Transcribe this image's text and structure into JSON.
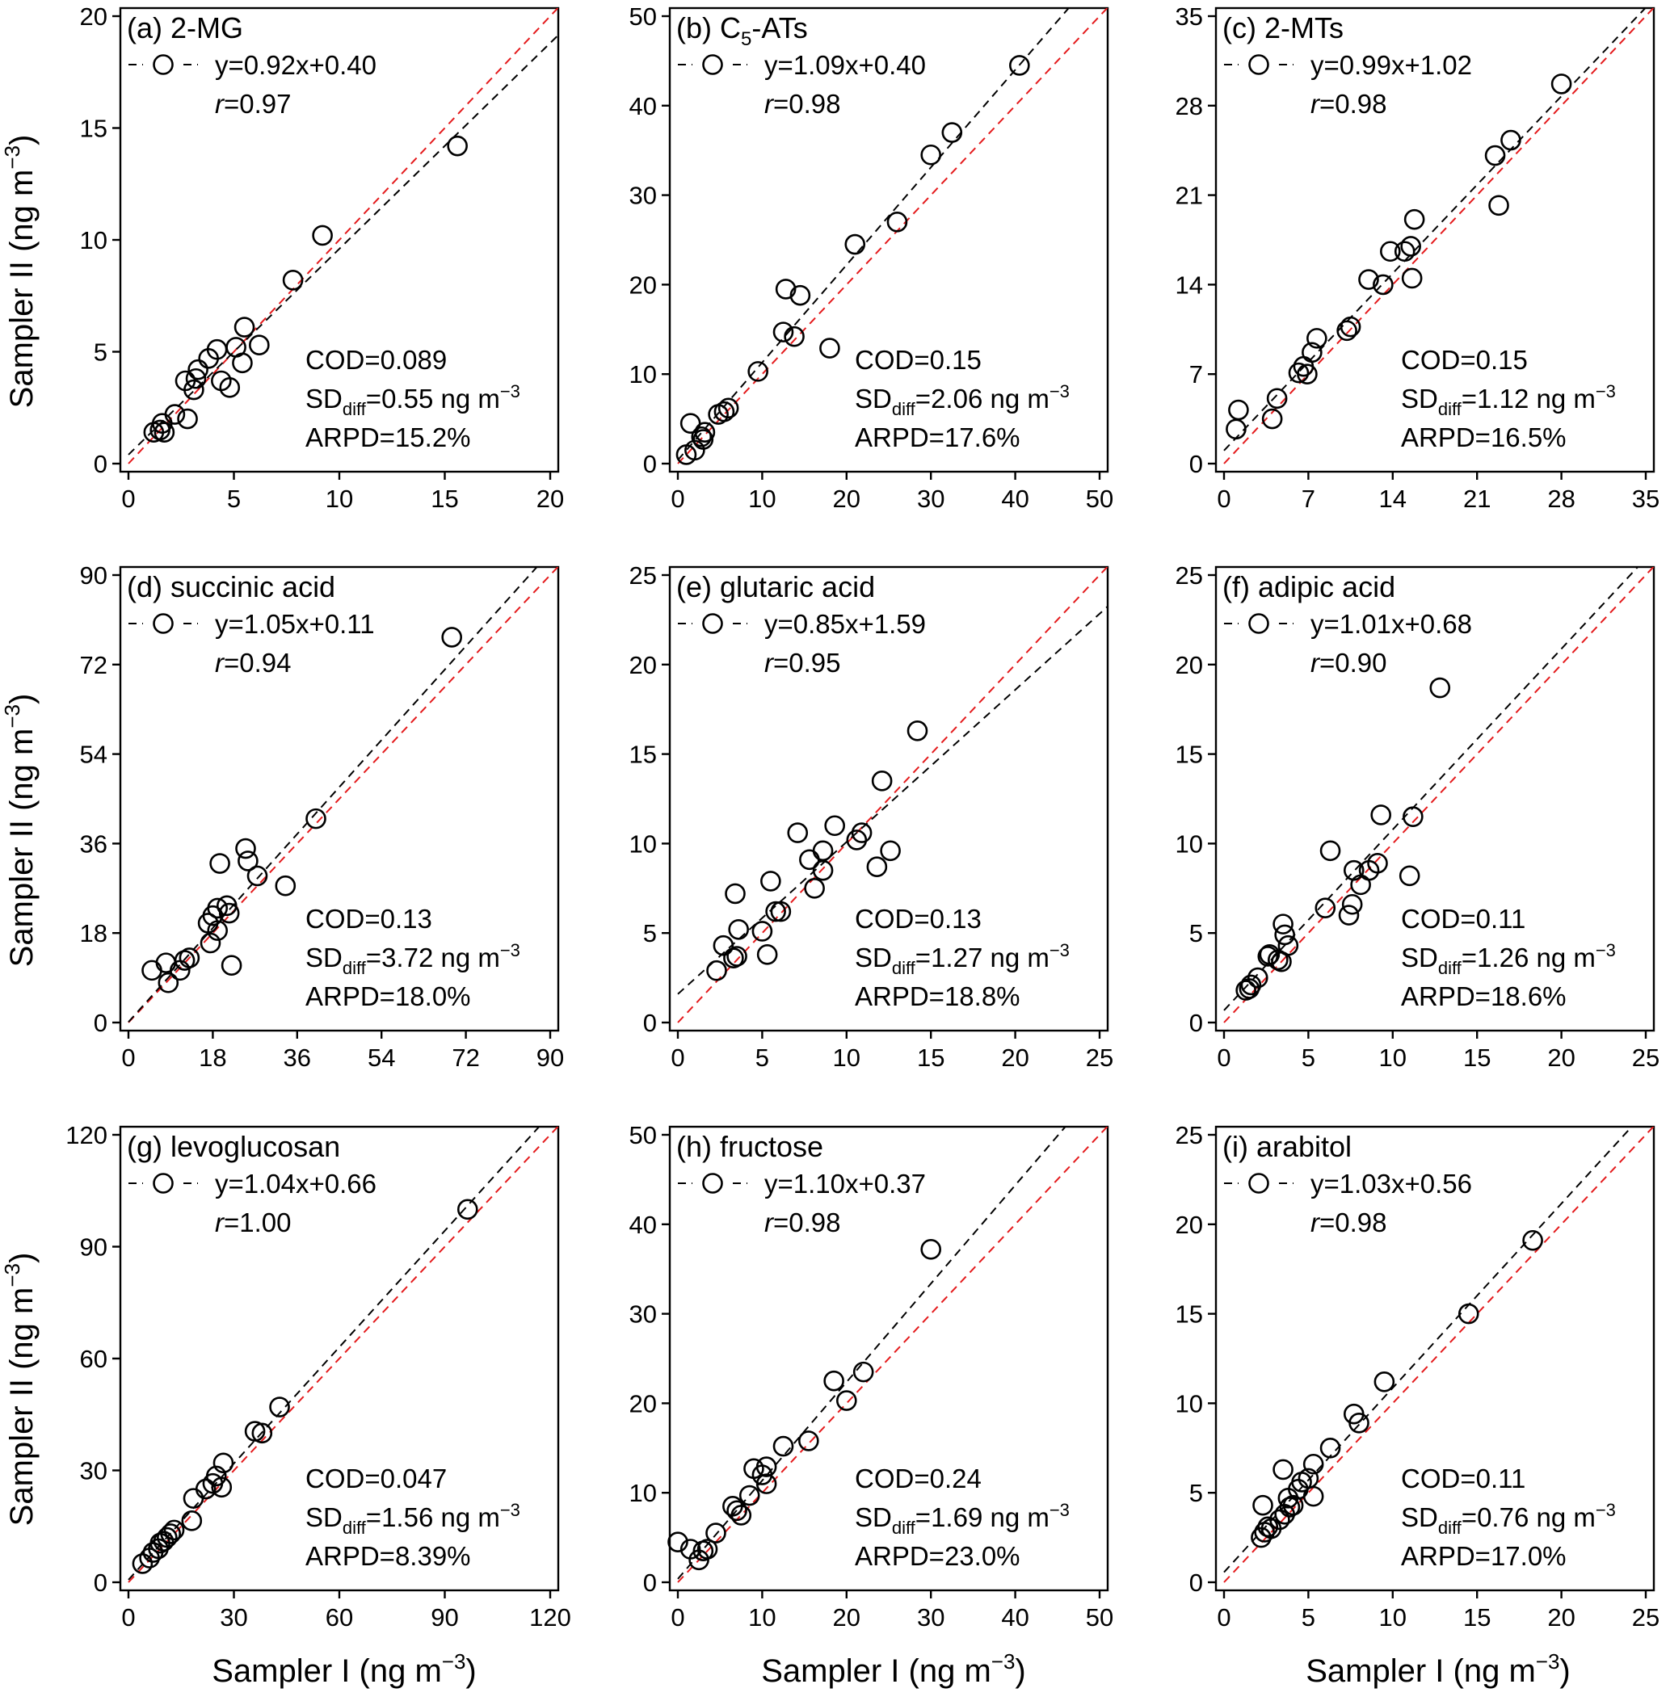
{
  "figure": {
    "ylabel_main": "Sampler II (ng m",
    "xlabel_main": "Sampler I (ng m",
    "unit_sup": "−3",
    "unit_close": ")"
  },
  "colors": {
    "fit_line": "#000000",
    "one_to_one_line": "#e41a1c",
    "markers": "#000000"
  },
  "chart_data": [
    {
      "type": "scatter",
      "title": "(a) 2-MG",
      "equation": "y=0.92x+0.40",
      "r_label": "r",
      "r_value": "=0.97",
      "cod": "COD=0.089",
      "sd_prefix": "SD",
      "sd_sub": "diff",
      "sd_value": "=0.55 ng m",
      "sd_sup": "−3",
      "arpd": "ARPD=15.2%",
      "slope": 0.92,
      "intercept": 0.4,
      "xlim": [
        0,
        20
      ],
      "ylim": [
        0,
        20
      ],
      "xticks": [
        0,
        5,
        10,
        15,
        20
      ],
      "yticks": [
        0,
        5,
        10,
        15,
        20
      ],
      "points": [
        [
          1.2,
          1.4
        ],
        [
          1.5,
          1.5
        ],
        [
          1.6,
          1.8
        ],
        [
          1.7,
          1.4
        ],
        [
          2.2,
          2.2
        ],
        [
          2.8,
          2.0
        ],
        [
          2.7,
          3.7
        ],
        [
          3.1,
          3.3
        ],
        [
          3.2,
          3.8
        ],
        [
          3.3,
          4.2
        ],
        [
          3.8,
          4.7
        ],
        [
          4.2,
          5.1
        ],
        [
          4.4,
          3.7
        ],
        [
          4.8,
          3.4
        ],
        [
          5.1,
          5.2
        ],
        [
          5.4,
          4.5
        ],
        [
          5.5,
          6.1
        ],
        [
          6.2,
          5.3
        ],
        [
          7.8,
          8.2
        ],
        [
          9.2,
          10.2
        ],
        [
          15.6,
          14.2
        ]
      ]
    },
    {
      "type": "scatter",
      "title": "(b) C",
      "title_sub": "5",
      "title_rest": "-ATs",
      "equation": "y=1.09x+0.40",
      "r_label": "r",
      "r_value": "=0.98",
      "cod": "COD=0.15",
      "sd_prefix": "SD",
      "sd_sub": "diff",
      "sd_value": "=2.06 ng m",
      "sd_sup": "−3",
      "arpd": "ARPD=17.6%",
      "slope": 1.09,
      "intercept": 0.4,
      "xlim": [
        0,
        50
      ],
      "ylim": [
        0,
        50
      ],
      "xticks": [
        0,
        10,
        20,
        30,
        40,
        50
      ],
      "yticks": [
        0,
        10,
        20,
        30,
        40,
        50
      ],
      "points": [
        [
          1.0,
          1.0
        ],
        [
          1.5,
          4.5
        ],
        [
          2.0,
          1.5
        ],
        [
          2.8,
          3.0
        ],
        [
          3.2,
          3.5
        ],
        [
          3.0,
          2.7
        ],
        [
          4.8,
          5.5
        ],
        [
          5.5,
          5.8
        ],
        [
          6.0,
          6.2
        ],
        [
          9.5,
          10.3
        ],
        [
          12.5,
          14.7
        ],
        [
          12.8,
          19.5
        ],
        [
          13.8,
          14.2
        ],
        [
          14.5,
          18.8
        ],
        [
          18.0,
          12.9
        ],
        [
          21.0,
          24.5
        ],
        [
          26.0,
          27.0
        ],
        [
          30.0,
          34.5
        ],
        [
          32.5,
          37.0
        ],
        [
          40.5,
          44.5
        ]
      ]
    },
    {
      "type": "scatter",
      "title": "(c) 2-MTs",
      "equation": "y=0.99x+1.02",
      "r_label": "r",
      "r_value": "=0.98",
      "cod": "COD=0.15",
      "sd_prefix": "SD",
      "sd_sub": "diff",
      "sd_value": "=1.12 ng m",
      "sd_sup": "−3",
      "arpd": "ARPD=16.5%",
      "slope": 0.99,
      "intercept": 1.02,
      "xlim": [
        0,
        35
      ],
      "ylim": [
        0,
        35
      ],
      "xticks": [
        0,
        7,
        14,
        21,
        28,
        35
      ],
      "yticks": [
        0,
        7,
        14,
        21,
        28,
        35
      ],
      "points": [
        [
          1.0,
          2.7
        ],
        [
          1.2,
          4.2
        ],
        [
          4.0,
          3.5
        ],
        [
          4.4,
          5.1
        ],
        [
          6.2,
          7.1
        ],
        [
          6.6,
          7.6
        ],
        [
          6.9,
          7.0
        ],
        [
          7.3,
          8.7
        ],
        [
          7.7,
          9.8
        ],
        [
          10.2,
          10.4
        ],
        [
          10.5,
          10.7
        ],
        [
          12.0,
          14.4
        ],
        [
          13.2,
          14.0
        ],
        [
          13.8,
          16.6
        ],
        [
          15.0,
          16.6
        ],
        [
          15.5,
          17.0
        ],
        [
          15.6,
          14.5
        ],
        [
          15.8,
          19.1
        ],
        [
          22.5,
          24.1
        ],
        [
          22.8,
          20.2
        ],
        [
          23.8,
          25.3
        ],
        [
          28.0,
          29.7
        ]
      ]
    },
    {
      "type": "scatter",
      "title": "(d) succinic acid",
      "equation": "y=1.05x+0.11",
      "r_label": "r",
      "r_value": "=0.94",
      "cod": "COD=0.13",
      "sd_prefix": "SD",
      "sd_sub": "diff",
      "sd_value": "=3.72 ng m",
      "sd_sup": "−3",
      "arpd": "ARPD=18.0%",
      "slope": 1.05,
      "intercept": 0.11,
      "xlim": [
        0,
        90
      ],
      "ylim": [
        0,
        90
      ],
      "xticks": [
        0,
        18,
        36,
        54,
        72,
        90
      ],
      "yticks": [
        0,
        18,
        36,
        54,
        72,
        90
      ],
      "points": [
        [
          5.0,
          10.5
        ],
        [
          8.0,
          12.0
        ],
        [
          8.5,
          8.0
        ],
        [
          11.0,
          10.5
        ],
        [
          12.0,
          12.5
        ],
        [
          13.0,
          13.0
        ],
        [
          17.0,
          20.0
        ],
        [
          17.5,
          16.0
        ],
        [
          18.0,
          21.5
        ],
        [
          19.0,
          18.5
        ],
        [
          19.0,
          23.0
        ],
        [
          19.5,
          32.0
        ],
        [
          21.0,
          23.5
        ],
        [
          21.5,
          22.0
        ],
        [
          22.0,
          11.5
        ],
        [
          25.0,
          35.0
        ],
        [
          25.5,
          32.5
        ],
        [
          27.5,
          29.5
        ],
        [
          33.5,
          27.5
        ],
        [
          40.0,
          41.0
        ],
        [
          69.0,
          77.5
        ]
      ]
    },
    {
      "type": "scatter",
      "title": "(e) glutaric acid",
      "equation": "y=0.85x+1.59",
      "r_label": "r",
      "r_value": "=0.95",
      "cod": "COD=0.13",
      "sd_prefix": "SD",
      "sd_sub": "diff",
      "sd_value": "=1.27 ng m",
      "sd_sup": "−3",
      "arpd": "ARPD=18.8%",
      "slope": 0.85,
      "intercept": 1.59,
      "xlim": [
        0,
        25
      ],
      "ylim": [
        0,
        25
      ],
      "xticks": [
        0,
        5,
        10,
        15,
        20,
        25
      ],
      "yticks": [
        0,
        5,
        10,
        15,
        20,
        25
      ],
      "points": [
        [
          2.3,
          2.9
        ],
        [
          2.7,
          4.3
        ],
        [
          3.3,
          3.6
        ],
        [
          3.4,
          7.2
        ],
        [
          3.5,
          3.7
        ],
        [
          3.6,
          5.2
        ],
        [
          5.0,
          5.1
        ],
        [
          5.3,
          3.8
        ],
        [
          5.5,
          7.9
        ],
        [
          5.8,
          6.2
        ],
        [
          6.1,
          6.2
        ],
        [
          7.1,
          10.6
        ],
        [
          7.8,
          9.1
        ],
        [
          8.1,
          7.5
        ],
        [
          8.6,
          8.5
        ],
        [
          8.6,
          9.6
        ],
        [
          9.3,
          11.0
        ],
        [
          10.6,
          10.2
        ],
        [
          10.9,
          10.6
        ],
        [
          11.8,
          8.7
        ],
        [
          12.1,
          13.5
        ],
        [
          12.6,
          9.6
        ],
        [
          14.2,
          16.3
        ]
      ]
    },
    {
      "type": "scatter",
      "title": "(f) adipic acid",
      "equation": "y=1.01x+0.68",
      "r_label": "r",
      "r_value": "=0.90",
      "cod": "COD=0.11",
      "sd_prefix": "SD",
      "sd_sub": "diff",
      "sd_value": "=1.26 ng m",
      "sd_sup": "−3",
      "arpd": "ARPD=18.6%",
      "slope": 1.01,
      "intercept": 0.68,
      "xlim": [
        0,
        25
      ],
      "ylim": [
        0,
        25
      ],
      "xticks": [
        0,
        5,
        10,
        15,
        20,
        25
      ],
      "yticks": [
        0,
        5,
        10,
        15,
        20,
        25
      ],
      "points": [
        [
          1.3,
          1.8
        ],
        [
          1.5,
          1.9
        ],
        [
          1.6,
          2.1
        ],
        [
          2.0,
          2.5
        ],
        [
          2.6,
          3.7
        ],
        [
          2.7,
          3.8
        ],
        [
          3.2,
          3.5
        ],
        [
          3.4,
          3.4
        ],
        [
          3.5,
          5.5
        ],
        [
          3.6,
          4.9
        ],
        [
          3.8,
          4.3
        ],
        [
          6.0,
          6.4
        ],
        [
          6.3,
          9.6
        ],
        [
          7.4,
          6.0
        ],
        [
          7.6,
          6.6
        ],
        [
          7.7,
          8.5
        ],
        [
          8.1,
          7.7
        ],
        [
          8.6,
          8.5
        ],
        [
          9.1,
          8.9
        ],
        [
          9.3,
          11.6
        ],
        [
          11.0,
          8.2
        ],
        [
          11.2,
          11.5
        ],
        [
          12.8,
          18.7
        ]
      ]
    },
    {
      "type": "scatter",
      "title": "(g) levoglucosan",
      "equation": "y=1.04x+0.66",
      "r_label": "r",
      "r_value": "=1.00",
      "cod": "COD=0.047",
      "sd_prefix": "SD",
      "sd_sub": "diff",
      "sd_value": "=1.56 ng m",
      "sd_sup": "−3",
      "arpd": "ARPD=8.39%",
      "slope": 1.04,
      "intercept": 0.66,
      "xlim": [
        0,
        120
      ],
      "ylim": [
        0,
        120
      ],
      "xticks": [
        0,
        30,
        60,
        90,
        120
      ],
      "yticks": [
        0,
        30,
        60,
        90,
        120
      ],
      "points": [
        [
          4.0,
          5.0
        ],
        [
          6.0,
          6.5
        ],
        [
          7.0,
          8.0
        ],
        [
          8.5,
          9.0
        ],
        [
          9.0,
          10.5
        ],
        [
          10.0,
          11.0
        ],
        [
          11.0,
          12.0
        ],
        [
          12.0,
          13.0
        ],
        [
          13.0,
          14.0
        ],
        [
          18.0,
          16.5
        ],
        [
          18.5,
          22.5
        ],
        [
          22.0,
          25.0
        ],
        [
          24.0,
          26.5
        ],
        [
          25.0,
          28.5
        ],
        [
          26.5,
          25.5
        ],
        [
          27.0,
          32.0
        ],
        [
          36.0,
          40.5
        ],
        [
          38.0,
          40.0
        ],
        [
          43.0,
          47.0
        ],
        [
          96.5,
          100.0
        ]
      ]
    },
    {
      "type": "scatter",
      "title": "(h) fructose",
      "equation": "y=1.10x+0.37",
      "r_label": "r",
      "r_value": "=0.98",
      "cod": "COD=0.24",
      "sd_prefix": "SD",
      "sd_sub": "diff",
      "sd_value": "=1.69 ng m",
      "sd_sup": "−3",
      "arpd": "ARPD=23.0%",
      "slope": 1.1,
      "intercept": 0.37,
      "xlim": [
        0,
        50
      ],
      "ylim": [
        0,
        50
      ],
      "xticks": [
        0,
        10,
        20,
        30,
        40,
        50
      ],
      "yticks": [
        0,
        10,
        20,
        30,
        40,
        50
      ],
      "points": [
        [
          0.0,
          4.5
        ],
        [
          1.5,
          3.7
        ],
        [
          2.5,
          2.5
        ],
        [
          3.0,
          3.5
        ],
        [
          3.5,
          3.7
        ],
        [
          4.5,
          5.5
        ],
        [
          6.5,
          8.5
        ],
        [
          7.0,
          8.0
        ],
        [
          7.5,
          7.5
        ],
        [
          8.5,
          9.7
        ],
        [
          9.0,
          12.7
        ],
        [
          10.0,
          12.0
        ],
        [
          10.5,
          12.9
        ],
        [
          10.5,
          11.0
        ],
        [
          12.5,
          15.2
        ],
        [
          15.5,
          15.8
        ],
        [
          18.5,
          22.5
        ],
        [
          20.0,
          20.3
        ],
        [
          22.0,
          23.5
        ],
        [
          30.0,
          37.2
        ]
      ]
    },
    {
      "type": "scatter",
      "title": "(i) arabitol",
      "equation": "y=1.03x+0.56",
      "r_label": "r",
      "r_value": "=0.98",
      "cod": "COD=0.11",
      "sd_prefix": "SD",
      "sd_sub": "diff",
      "sd_value": "=0.76 ng m",
      "sd_sup": "−3",
      "arpd": "ARPD=17.0%",
      "slope": 1.03,
      "intercept": 0.56,
      "xlim": [
        0,
        25
      ],
      "ylim": [
        0,
        25
      ],
      "xticks": [
        0,
        5,
        10,
        15,
        20,
        25
      ],
      "yticks": [
        0,
        5,
        10,
        15,
        20,
        25
      ],
      "points": [
        [
          2.2,
          2.5
        ],
        [
          2.3,
          4.3
        ],
        [
          2.4,
          2.8
        ],
        [
          2.6,
          3.1
        ],
        [
          2.8,
          3.0
        ],
        [
          3.3,
          3.5
        ],
        [
          3.5,
          6.3
        ],
        [
          3.6,
          3.8
        ],
        [
          3.8,
          4.7
        ],
        [
          3.9,
          4.2
        ],
        [
          4.1,
          4.3
        ],
        [
          4.4,
          5.2
        ],
        [
          4.6,
          5.6
        ],
        [
          5.0,
          5.8
        ],
        [
          5.3,
          4.8
        ],
        [
          5.3,
          6.6
        ],
        [
          6.3,
          7.5
        ],
        [
          7.7,
          9.4
        ],
        [
          8.0,
          8.9
        ],
        [
          9.5,
          11.2
        ],
        [
          14.5,
          15.0
        ],
        [
          18.3,
          19.1
        ]
      ]
    }
  ]
}
